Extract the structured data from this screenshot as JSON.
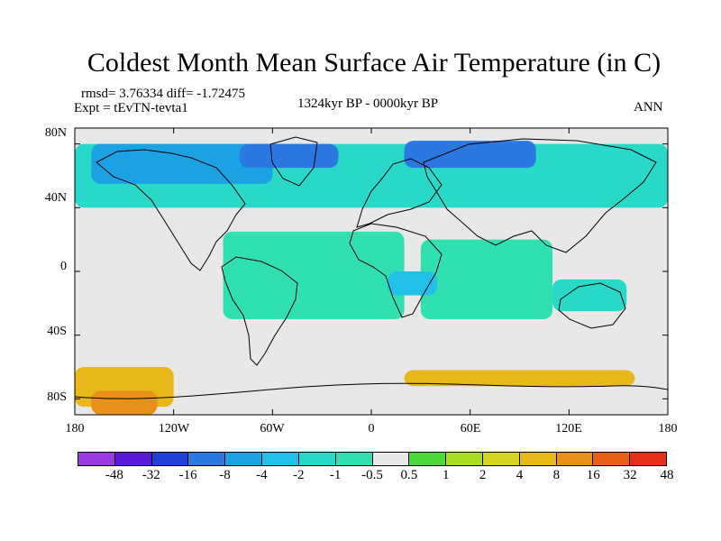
{
  "title": "Coldest Month Mean Surface Air Temperature (in C)",
  "stats_line": "rmsd= 3.76334 diff= -1.72475",
  "experiment_line": "Expt = tEvTN-tevta1",
  "period_line": "1324kyr BP - 0000kyr BP",
  "season_label": "ANN",
  "lat_labels": [
    "80N",
    "40N",
    "0",
    "40S",
    "80S"
  ],
  "lon_labels": [
    "180",
    "120W",
    "60W",
    "0",
    "60E",
    "120E",
    "180"
  ],
  "colorbar": {
    "colors": [
      "#9a3ae0",
      "#5a1ad8",
      "#2040d8",
      "#2a78e0",
      "#1aa2e4",
      "#20c0e8",
      "#28d8c8",
      "#30e0b0",
      "#e8e8e8",
      "#4ad838",
      "#a8dc20",
      "#d4d420",
      "#e8b818",
      "#e89018",
      "#e86018",
      "#e83018"
    ],
    "labels": [
      "-48",
      "-32",
      "-16",
      "-8",
      "-4",
      "-2",
      "-1",
      "-0.5",
      "0.5",
      "1",
      "2",
      "4",
      "8",
      "16",
      "32",
      "48"
    ]
  },
  "chart_data": {
    "type": "heatmap",
    "title": "Coldest Month Mean Surface Air Temperature (in C)",
    "projection": "cylindrical-equidistant",
    "xlim": [
      -180,
      180
    ],
    "ylim": [
      -90,
      90
    ],
    "x_ticks": [
      -180,
      -120,
      -60,
      0,
      60,
      120,
      180
    ],
    "y_ticks": [
      80,
      40,
      0,
      -40,
      -80
    ],
    "contour_levels": [
      -48,
      -32,
      -16,
      -8,
      -4,
      -2,
      -1,
      -0.5,
      0.5,
      1,
      2,
      4,
      8,
      16,
      32,
      48
    ],
    "summary": {
      "rmsd": 3.76334,
      "diff": -1.72475
    },
    "background_level_range": [
      -0.5,
      0.5
    ],
    "regions": [
      {
        "lon": [
          -180,
          180
        ],
        "lat": [
          40,
          80
        ],
        "value": -2
      },
      {
        "lon": [
          -170,
          -60
        ],
        "lat": [
          55,
          80
        ],
        "value": -6
      },
      {
        "lon": [
          -80,
          -20
        ],
        "lat": [
          65,
          80
        ],
        "value": -12
      },
      {
        "lon": [
          20,
          100
        ],
        "lat": [
          65,
          82
        ],
        "value": -12
      },
      {
        "lon": [
          -90,
          20
        ],
        "lat": [
          -30,
          25
        ],
        "value": -1
      },
      {
        "lon": [
          30,
          110
        ],
        "lat": [
          -30,
          20
        ],
        "value": -1
      },
      {
        "lon": [
          10,
          40
        ],
        "lat": [
          -15,
          0
        ],
        "value": -4
      },
      {
        "lon": [
          110,
          155
        ],
        "lat": [
          -25,
          -5
        ],
        "value": -2
      },
      {
        "lon": [
          -180,
          -120
        ],
        "lat": [
          -85,
          -60
        ],
        "value": 4
      },
      {
        "lon": [
          20,
          160
        ],
        "lat": [
          -72,
          -62
        ],
        "value": 6
      },
      {
        "lon": [
          -170,
          -130
        ],
        "lat": [
          -90,
          -75
        ],
        "value": 12
      }
    ]
  }
}
